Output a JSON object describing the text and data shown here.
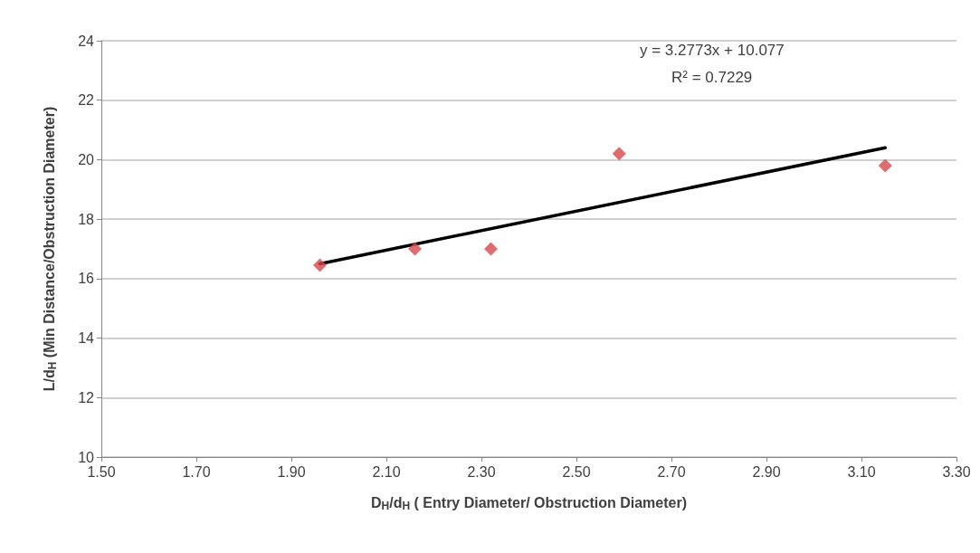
{
  "chart_data": {
    "type": "scatter",
    "xlabel": "D$_{H}$/d$_{H}$ ( Entry Diameter/ Obstruction Diameter)",
    "ylabel": "L/d$_{H}$ (Min Distance/Obstruction Diameter)",
    "xlim": [
      1.5,
      3.3
    ],
    "xticks": [
      {
        "value": 1.5,
        "label": "1.50"
      },
      {
        "value": 1.7,
        "label": "1.70"
      },
      {
        "value": 1.9,
        "label": "1.90"
      },
      {
        "value": 2.1,
        "label": "2.10"
      },
      {
        "value": 2.3,
        "label": "2.30"
      },
      {
        "value": 2.5,
        "label": "2.50"
      },
      {
        "value": 2.7,
        "label": "2.70"
      },
      {
        "value": 2.9,
        "label": "2.90"
      },
      {
        "value": 3.1,
        "label": "3.10"
      },
      {
        "value": 3.3,
        "label": "3.30"
      }
    ],
    "ylim": [
      10,
      24
    ],
    "yticks": [
      10,
      12,
      14,
      16,
      18,
      20,
      22,
      24
    ],
    "grid": "y",
    "marker": "diamond",
    "series": [
      {
        "type": "scatter",
        "color": "#d5484b",
        "x": [
          1.96,
          2.16,
          2.32,
          2.59,
          3.15
        ],
        "values": [
          16.45,
          17.0,
          17.0,
          20.2,
          19.8
        ]
      },
      {
        "type": "line",
        "color": "#000000",
        "marker": "none",
        "x": [
          1.96,
          3.15
        ],
        "values": [
          16.5,
          20.4
        ]
      }
    ],
    "annotations": [
      "y = 3.2773x + 10.077",
      "R² = 0.7229"
    ]
  }
}
